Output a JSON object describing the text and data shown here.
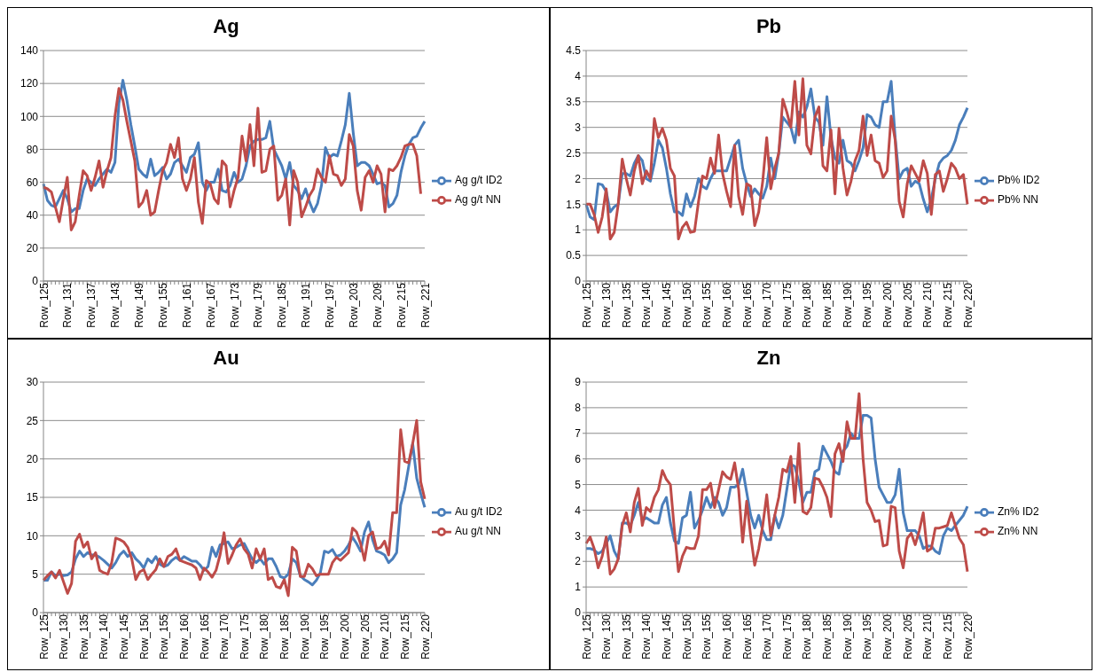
{
  "chart_data": [
    {
      "type": "line",
      "title": "Ag",
      "categories": [
        "Row_125",
        null,
        null,
        null,
        null,
        null,
        "Row_131",
        null,
        null,
        null,
        null,
        null,
        "Row_137",
        null,
        null,
        null,
        null,
        null,
        "Row_143",
        null,
        null,
        null,
        null,
        null,
        "Row_149",
        null,
        null,
        null,
        null,
        null,
        "Row_155",
        null,
        null,
        null,
        null,
        null,
        "Row_161",
        null,
        null,
        null,
        null,
        null,
        "Row_167",
        null,
        null,
        null,
        null,
        null,
        "Row_173",
        null,
        null,
        null,
        null,
        null,
        "Row_179",
        null,
        null,
        null,
        null,
        null,
        "Row_185",
        null,
        null,
        null,
        null,
        null,
        "Row_191",
        null,
        null,
        null,
        null,
        null,
        "Row_197",
        null,
        null,
        null,
        null,
        null,
        "Row_203",
        null,
        null,
        null,
        null,
        null,
        "Row_209",
        null,
        null,
        null,
        null,
        null,
        "Row_215",
        null,
        null,
        null,
        null,
        null,
        "Row_221"
      ],
      "series": [
        {
          "name": "Ag g/t ID2",
          "color": "#4a7ebb",
          "values": [
            59,
            49,
            46,
            45,
            50,
            55,
            50,
            42,
            44,
            44,
            55,
            62,
            60,
            58,
            62,
            65,
            68,
            66,
            72,
            108,
            122,
            110,
            95,
            82,
            68,
            65,
            63,
            74,
            64,
            66,
            69,
            62,
            65,
            72,
            74,
            70,
            66,
            75,
            77,
            84,
            60,
            55,
            60,
            60,
            68,
            55,
            54,
            58,
            66,
            60,
            62,
            70,
            82,
            85,
            86,
            86,
            87,
            97,
            80,
            75,
            70,
            62,
            72,
            58,
            55,
            50,
            56,
            48,
            42,
            47,
            58,
            81,
            75,
            77,
            76,
            85,
            95,
            114,
            90,
            70,
            72,
            72,
            70,
            65,
            59,
            60,
            58,
            45,
            47,
            52,
            66,
            76,
            83,
            87,
            88,
            93,
            97
          ]
        },
        {
          "name": "Ag g/t NN",
          "color": "#be4b48",
          "values": [
            57,
            56,
            54,
            45,
            36,
            50,
            63,
            31,
            36,
            52,
            67,
            64,
            55,
            63,
            73,
            57,
            67,
            75,
            100,
            117,
            110,
            97,
            85,
            73,
            45,
            48,
            55,
            40,
            42,
            55,
            67,
            72,
            83,
            75,
            87,
            62,
            55,
            62,
            75,
            48,
            35,
            61,
            59,
            50,
            47,
            73,
            70,
            45,
            55,
            63,
            88,
            73,
            95,
            70,
            105,
            66,
            67,
            80,
            82,
            49,
            52,
            62,
            34,
            67,
            60,
            39,
            45,
            52,
            56,
            68,
            63,
            60,
            76,
            65,
            64,
            58,
            62,
            89,
            82,
            55,
            43,
            63,
            67,
            60,
            70,
            65,
            42,
            68,
            67,
            70,
            75,
            82,
            83,
            83,
            76,
            53,
            null
          ]
        }
      ],
      "ylim": [
        0,
        140
      ],
      "yticks": [
        0,
        20,
        40,
        60,
        80,
        100,
        120,
        140
      ],
      "grid": "y",
      "legend": "right",
      "marker": "none",
      "line_style": "solid"
    },
    {
      "type": "line",
      "title": "Pb",
      "categories": [
        "Row_125",
        null,
        null,
        null,
        null,
        "Row_130",
        null,
        null,
        null,
        null,
        "Row_135",
        null,
        null,
        null,
        null,
        "Row_140",
        null,
        null,
        null,
        null,
        "Row_145",
        null,
        null,
        null,
        null,
        "Row_150",
        null,
        null,
        null,
        null,
        "Row_155",
        null,
        null,
        null,
        null,
        "Row_160",
        null,
        null,
        null,
        null,
        "Row_165",
        null,
        null,
        null,
        null,
        "Row_170",
        null,
        null,
        null,
        null,
        "Row_175",
        null,
        null,
        null,
        null,
        "Row_180",
        null,
        null,
        null,
        null,
        "Row_185",
        null,
        null,
        null,
        null,
        "Row_190",
        null,
        null,
        null,
        null,
        "Row_195",
        null,
        null,
        null,
        null,
        "Row_200",
        null,
        null,
        null,
        null,
        "Row_205",
        null,
        null,
        null,
        null,
        "Row_210",
        null,
        null,
        null,
        null,
        "Row_215",
        null,
        null,
        null,
        null,
        "Row_220"
      ],
      "series": [
        {
          "name": "Pb% ID2",
          "color": "#4a7ebb",
          "values": [
            1.5,
            1.25,
            1.2,
            1.9,
            1.88,
            1.75,
            1.35,
            1.45,
            1.5,
            2.1,
            2.1,
            2.05,
            2.3,
            2.45,
            2.35,
            2.0,
            1.95,
            2.3,
            2.75,
            2.6,
            2.2,
            1.7,
            1.35,
            1.35,
            1.28,
            1.7,
            1.45,
            1.65,
            2.0,
            1.85,
            1.8,
            2.0,
            2.15,
            2.15,
            2.15,
            2.15,
            2.4,
            2.65,
            2.75,
            2.2,
            1.9,
            1.65,
            1.8,
            1.7,
            1.62,
            1.85,
            2.4,
            2.0,
            2.5,
            3.2,
            3.1,
            3.0,
            2.7,
            3.3,
            3.2,
            3.4,
            3.75,
            3.2,
            3.1,
            2.65,
            3.6,
            2.8,
            2.4,
            2.3,
            2.75,
            2.35,
            2.3,
            2.15,
            2.35,
            2.6,
            3.25,
            3.2,
            3.05,
            3.0,
            3.5,
            3.5,
            3.9,
            2.8,
            2.0,
            2.15,
            2.2,
            1.85,
            1.95,
            1.9,
            1.6,
            1.35,
            1.6,
            2.0,
            2.3,
            2.4,
            2.45,
            2.55,
            2.75,
            3.05,
            3.2,
            3.38
          ]
        },
        {
          "name": "Pb% NN",
          "color": "#be4b48",
          "values": [
            1.5,
            1.5,
            1.3,
            0.95,
            1.25,
            1.8,
            0.82,
            0.95,
            1.5,
            2.38,
            2.0,
            1.68,
            2.15,
            2.45,
            1.9,
            2.15,
            2.0,
            3.17,
            2.8,
            2.98,
            2.75,
            2.2,
            2.05,
            0.82,
            1.05,
            1.15,
            0.95,
            0.97,
            1.55,
            2.05,
            2.0,
            2.4,
            2.1,
            2.85,
            2.1,
            1.75,
            1.45,
            2.65,
            1.65,
            1.3,
            1.9,
            1.85,
            1.08,
            1.35,
            1.95,
            2.8,
            1.8,
            2.2,
            2.5,
            3.55,
            3.3,
            3.0,
            3.9,
            2.85,
            3.95,
            2.65,
            2.48,
            3.2,
            3.4,
            2.25,
            2.15,
            2.95,
            1.7,
            2.98,
            2.2,
            1.68,
            1.95,
            2.35,
            2.55,
            3.22,
            2.45,
            2.85,
            2.35,
            2.3,
            2.02,
            2.15,
            3.22,
            2.75,
            1.55,
            1.25,
            1.9,
            2.25,
            2.1,
            1.95,
            2.35,
            2.1,
            1.3,
            2.08,
            2.15,
            1.75,
            2.0,
            2.3,
            2.2,
            2.0,
            2.08,
            1.5
          ]
        }
      ],
      "ylim": [
        0,
        4.5
      ],
      "yticks": [
        0,
        0.5,
        1,
        1.5,
        2,
        2.5,
        3,
        3.5,
        4,
        4.5
      ],
      "grid": "y",
      "legend": "right",
      "marker": "none",
      "line_style": "solid"
    },
    {
      "type": "line",
      "title": "Au",
      "categories": [
        "Row_125",
        null,
        null,
        null,
        null,
        "Row_130",
        null,
        null,
        null,
        null,
        "Row_135",
        null,
        null,
        null,
        null,
        "Row_140",
        null,
        null,
        null,
        null,
        "Row_145",
        null,
        null,
        null,
        null,
        "Row_150",
        null,
        null,
        null,
        null,
        "Row_155",
        null,
        null,
        null,
        null,
        "Row_160",
        null,
        null,
        null,
        null,
        "Row_165",
        null,
        null,
        null,
        null,
        "Row_170",
        null,
        null,
        null,
        null,
        "Row_175",
        null,
        null,
        null,
        null,
        "Row_180",
        null,
        null,
        null,
        null,
        "Row_185",
        null,
        null,
        null,
        null,
        "Row_190",
        null,
        null,
        null,
        null,
        "Row_195",
        null,
        null,
        null,
        null,
        "Row_200",
        null,
        null,
        null,
        null,
        "Row_205",
        null,
        null,
        null,
        null,
        "Row_210",
        null,
        null,
        null,
        null,
        "Row_215",
        null,
        null,
        null,
        null,
        "Row_220"
      ],
      "series": [
        {
          "name": "Au g/t ID2",
          "color": "#4a7ebb",
          "values": [
            4.2,
            4.2,
            5.3,
            4.8,
            5.0,
            4.8,
            4.9,
            5.3,
            7.0,
            8.0,
            7.3,
            7.8,
            7.5,
            7.5,
            7.2,
            6.8,
            6.3,
            5.8,
            6.5,
            7.5,
            8.0,
            7.3,
            7.8,
            7.0,
            6.5,
            5.8,
            7.0,
            6.5,
            7.3,
            6.3,
            6.0,
            6.2,
            6.8,
            7.2,
            6.8,
            7.3,
            7.0,
            6.7,
            6.7,
            6.2,
            5.5,
            6.0,
            8.5,
            7.3,
            8.8,
            9.0,
            9.2,
            8.3,
            8.5,
            8.8,
            9.0,
            8.0,
            7.0,
            6.5,
            7.0,
            6.3,
            7.0,
            7.0,
            6.0,
            4.7,
            4.5,
            5.0,
            7.0,
            6.5,
            4.8,
            4.3,
            4.0,
            3.6,
            4.2,
            5.2,
            8.0,
            7.8,
            8.2,
            7.3,
            7.5,
            8.0,
            8.8,
            9.8,
            9.0,
            8.0,
            10.5,
            11.8,
            9.5,
            8.0,
            7.8,
            7.5,
            6.5,
            7.0,
            7.8,
            14,
            16,
            19,
            22,
            17.5,
            15.5,
            13.7
          ]
        },
        {
          "name": "Au g/t NN",
          "color": "#be4b48",
          "values": [
            4.2,
            4.8,
            5.3,
            4.5,
            5.5,
            4.0,
            2.5,
            3.8,
            9.3,
            10.2,
            8.5,
            9.2,
            7.0,
            7.8,
            5.5,
            5.2,
            5.0,
            6.5,
            9.7,
            9.5,
            9.2,
            8.5,
            7.0,
            4.3,
            5.3,
            5.6,
            4.3,
            5.0,
            5.6,
            7.0,
            6.0,
            7.3,
            7.6,
            8.3,
            6.8,
            6.6,
            6.4,
            6.2,
            5.8,
            4.3,
            5.8,
            5.3,
            4.6,
            5.5,
            7.5,
            10.4,
            6.4,
            7.5,
            8.8,
            9.6,
            8.3,
            7.6,
            5.8,
            8.3,
            7.0,
            8.3,
            4.3,
            4.6,
            3.4,
            3.2,
            4.3,
            2.2,
            8.5,
            8.0,
            4.7,
            4.7,
            6.3,
            5.7,
            4.8,
            5.0,
            5.0,
            5.0,
            6.5,
            7.2,
            6.8,
            7.3,
            7.8,
            11.0,
            10.5,
            9.0,
            6.8,
            10.0,
            10.5,
            8.3,
            8.5,
            9.3,
            7.5,
            13.0,
            13.0,
            23.8,
            19.7,
            19.5,
            22.0,
            25.0,
            17.0,
            14.8
          ]
        }
      ],
      "ylim": [
        0,
        30
      ],
      "yticks": [
        0,
        5,
        10,
        15,
        20,
        25,
        30
      ],
      "grid": "y",
      "legend": "right",
      "marker": "none",
      "line_style": "solid"
    },
    {
      "type": "line",
      "title": "Zn",
      "categories": [
        "Row_125",
        null,
        null,
        null,
        null,
        "Row_130",
        null,
        null,
        null,
        null,
        "Row_135",
        null,
        null,
        null,
        null,
        "Row_140",
        null,
        null,
        null,
        null,
        "Row_145",
        null,
        null,
        null,
        null,
        "Row_150",
        null,
        null,
        null,
        null,
        "Row_155",
        null,
        null,
        null,
        null,
        "Row_160",
        null,
        null,
        null,
        null,
        "Row_165",
        null,
        null,
        null,
        null,
        "Row_170",
        null,
        null,
        null,
        null,
        "Row_175",
        null,
        null,
        null,
        null,
        "Row_180",
        null,
        null,
        null,
        null,
        "Row_185",
        null,
        null,
        null,
        null,
        "Row_190",
        null,
        null,
        null,
        null,
        "Row_195",
        null,
        null,
        null,
        null,
        "Row_200",
        null,
        null,
        null,
        null,
        "Row_205",
        null,
        null,
        null,
        null,
        "Row_210",
        null,
        null,
        null,
        null,
        "Row_215",
        null,
        null,
        null,
        null,
        "Row_220"
      ],
      "series": [
        {
          "name": "Zn% ID2",
          "color": "#4a7ebb",
          "values": [
            2.5,
            2.5,
            2.45,
            2.3,
            2.4,
            2.7,
            3.0,
            2.4,
            2.1,
            3.5,
            3.5,
            3.4,
            3.8,
            4.3,
            3.6,
            3.7,
            3.6,
            3.5,
            3.5,
            4.2,
            4.5,
            3.5,
            2.8,
            2.7,
            3.7,
            3.8,
            4.7,
            3.3,
            3.6,
            4.0,
            4.5,
            4.1,
            4.5,
            4.3,
            3.8,
            4.1,
            4.9,
            4.9,
            5.0,
            5.6,
            4.7,
            3.8,
            3.3,
            3.8,
            3.2,
            2.85,
            2.85,
            3.8,
            3.3,
            3.8,
            4.8,
            5.8,
            5.7,
            5.1,
            4.3,
            4.7,
            4.7,
            5.5,
            5.6,
            6.5,
            6.2,
            5.9,
            5.5,
            5.4,
            6.3,
            6.5,
            7.0,
            6.8,
            6.8,
            7.7,
            7.7,
            7.6,
            6.0,
            4.9,
            4.6,
            4.3,
            4.3,
            4.6,
            5.6,
            3.9,
            3.2,
            3.2,
            3.2,
            3.0,
            2.5,
            2.6,
            2.6,
            2.4,
            2.3,
            3.0,
            3.3,
            3.2,
            3.4,
            3.6,
            3.8,
            4.15
          ]
        },
        {
          "name": "Zn% NN",
          "color": "#be4b48",
          "values": [
            2.7,
            2.95,
            2.5,
            1.75,
            2.2,
            2.95,
            1.5,
            1.7,
            2.1,
            3.4,
            3.9,
            3.15,
            4.3,
            4.85,
            3.4,
            4.1,
            3.95,
            4.5,
            4.8,
            5.55,
            5.2,
            5.0,
            3.2,
            1.6,
            2.2,
            2.55,
            2.5,
            2.5,
            3.0,
            4.8,
            4.8,
            5.05,
            4.1,
            4.8,
            5.5,
            5.3,
            5.2,
            5.85,
            4.8,
            2.75,
            4.35,
            3.0,
            1.85,
            2.5,
            3.4,
            4.6,
            3.0,
            3.8,
            4.5,
            5.6,
            5.5,
            6.1,
            4.3,
            6.6,
            3.95,
            3.85,
            4.1,
            5.25,
            5.2,
            4.9,
            4.5,
            3.75,
            6.2,
            6.6,
            5.9,
            7.45,
            6.8,
            6.8,
            8.55,
            6.0,
            4.3,
            4.0,
            3.55,
            3.6,
            2.6,
            2.65,
            4.15,
            4.1,
            2.4,
            1.75,
            2.9,
            3.1,
            2.65,
            3.2,
            3.9,
            2.4,
            2.5,
            3.3,
            3.3,
            3.35,
            3.4,
            3.9,
            3.4,
            2.9,
            2.65,
            1.6
          ]
        }
      ],
      "ylim": [
        0,
        9
      ],
      "yticks": [
        0,
        1,
        2,
        3,
        4,
        5,
        6,
        7,
        8,
        9
      ],
      "grid": "y",
      "legend": "right",
      "marker": "none",
      "line_style": "solid"
    }
  ]
}
